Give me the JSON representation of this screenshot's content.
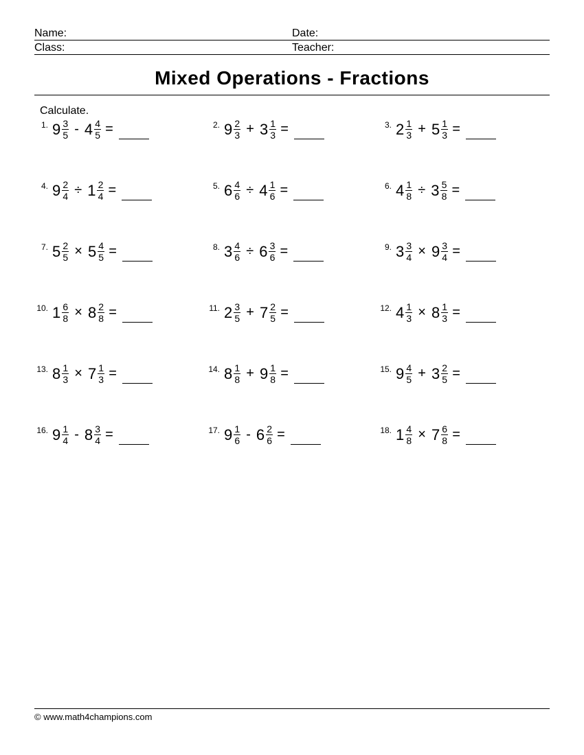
{
  "header": {
    "name_label": "Name:",
    "date_label": "Date:",
    "class_label": "Class:",
    "teacher_label": "Teacher:"
  },
  "title": "Mixed Operations - Fractions",
  "instruction": "Calculate.",
  "problems": [
    {
      "n": "1.",
      "a_whole": "9",
      "a_num": "3",
      "a_den": "5",
      "op": "-",
      "b_whole": "4",
      "b_num": "4",
      "b_den": "5"
    },
    {
      "n": "2.",
      "a_whole": "9",
      "a_num": "2",
      "a_den": "3",
      "op": "+",
      "b_whole": "3",
      "b_num": "1",
      "b_den": "3"
    },
    {
      "n": "3.",
      "a_whole": "2",
      "a_num": "1",
      "a_den": "3",
      "op": "+",
      "b_whole": "5",
      "b_num": "1",
      "b_den": "3"
    },
    {
      "n": "4.",
      "a_whole": "9",
      "a_num": "2",
      "a_den": "4",
      "op": "÷",
      "b_whole": "1",
      "b_num": "2",
      "b_den": "4"
    },
    {
      "n": "5.",
      "a_whole": "6",
      "a_num": "4",
      "a_den": "6",
      "op": "÷",
      "b_whole": "4",
      "b_num": "1",
      "b_den": "6"
    },
    {
      "n": "6.",
      "a_whole": "4",
      "a_num": "1",
      "a_den": "8",
      "op": "÷",
      "b_whole": "3",
      "b_num": "5",
      "b_den": "8"
    },
    {
      "n": "7.",
      "a_whole": "5",
      "a_num": "2",
      "a_den": "5",
      "op": "×",
      "b_whole": "5",
      "b_num": "4",
      "b_den": "5"
    },
    {
      "n": "8.",
      "a_whole": "3",
      "a_num": "4",
      "a_den": "6",
      "op": "÷",
      "b_whole": "6",
      "b_num": "3",
      "b_den": "6"
    },
    {
      "n": "9.",
      "a_whole": "3",
      "a_num": "3",
      "a_den": "4",
      "op": "×",
      "b_whole": "9",
      "b_num": "3",
      "b_den": "4"
    },
    {
      "n": "10.",
      "a_whole": "1",
      "a_num": "6",
      "a_den": "8",
      "op": "×",
      "b_whole": "8",
      "b_num": "2",
      "b_den": "8"
    },
    {
      "n": "11.",
      "a_whole": "2",
      "a_num": "3",
      "a_den": "5",
      "op": "+",
      "b_whole": "7",
      "b_num": "2",
      "b_den": "5"
    },
    {
      "n": "12.",
      "a_whole": "4",
      "a_num": "1",
      "a_den": "3",
      "op": "×",
      "b_whole": "8",
      "b_num": "1",
      "b_den": "3"
    },
    {
      "n": "13.",
      "a_whole": "8",
      "a_num": "1",
      "a_den": "3",
      "op": "×",
      "b_whole": "7",
      "b_num": "1",
      "b_den": "3"
    },
    {
      "n": "14.",
      "a_whole": "8",
      "a_num": "1",
      "a_den": "8",
      "op": "+",
      "b_whole": "9",
      "b_num": "1",
      "b_den": "8"
    },
    {
      "n": "15.",
      "a_whole": "9",
      "a_num": "4",
      "a_den": "5",
      "op": "+",
      "b_whole": "3",
      "b_num": "2",
      "b_den": "5"
    },
    {
      "n": "16.",
      "a_whole": "9",
      "a_num": "1",
      "a_den": "4",
      "op": "-",
      "b_whole": "8",
      "b_num": "3",
      "b_den": "4"
    },
    {
      "n": "17.",
      "a_whole": "9",
      "a_num": "1",
      "a_den": "6",
      "op": "-",
      "b_whole": "6",
      "b_num": "2",
      "b_den": "6"
    },
    {
      "n": "18.",
      "a_whole": "1",
      "a_num": "4",
      "a_den": "8",
      "op": "×",
      "b_whole": "7",
      "b_num": "6",
      "b_den": "8"
    }
  ],
  "equals": "=",
  "footer": "© www.math4champions.com"
}
